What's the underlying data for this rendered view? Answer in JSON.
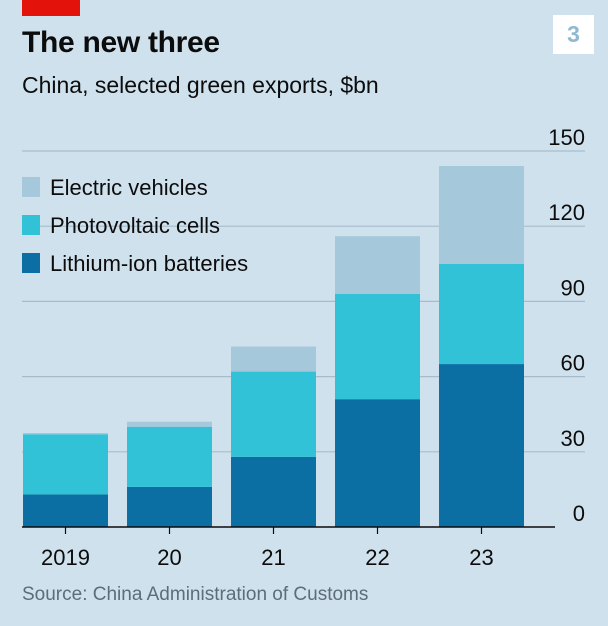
{
  "header": {
    "title": "The new three",
    "subtitle": "China, selected green exports, $bn",
    "badge": "3"
  },
  "source": "Source: China Administration of Customs",
  "colors": {
    "background": "#d0e1ee",
    "brand_red": "#e3120b",
    "electric_vehicles": "#a5c8da",
    "photovoltaic_cells": "#32c2d8",
    "lithium_ion_batteries": "#0b6fa3",
    "gridline": "#a6bccb",
    "axis": "#0c0c0c"
  },
  "chart_data": {
    "type": "bar",
    "stacked": true,
    "title": "The new three",
    "subtitle": "China, selected green exports, $bn",
    "categories": [
      "2019",
      "20",
      "21",
      "22",
      "23"
    ],
    "series": [
      {
        "name": "Lithium-ion batteries",
        "color": "#0b6fa3",
        "values": [
          13,
          16,
          28,
          51,
          65
        ]
      },
      {
        "name": "Photovoltaic cells",
        "color": "#32c2d8",
        "values": [
          24,
          24,
          34,
          42,
          40
        ]
      },
      {
        "name": "Electric vehicles",
        "color": "#a5c8da",
        "values": [
          0.5,
          2,
          10,
          23,
          39
        ]
      }
    ],
    "ylim": [
      0,
      150
    ],
    "yticks": [
      0,
      30,
      60,
      90,
      120,
      150
    ],
    "y_axis_side": "right",
    "grid": true,
    "legend": {
      "placement": "top-left",
      "order": [
        "Electric vehicles",
        "Photovoltaic cells",
        "Lithium-ion batteries"
      ]
    },
    "xlabel": "",
    "ylabel": ""
  }
}
